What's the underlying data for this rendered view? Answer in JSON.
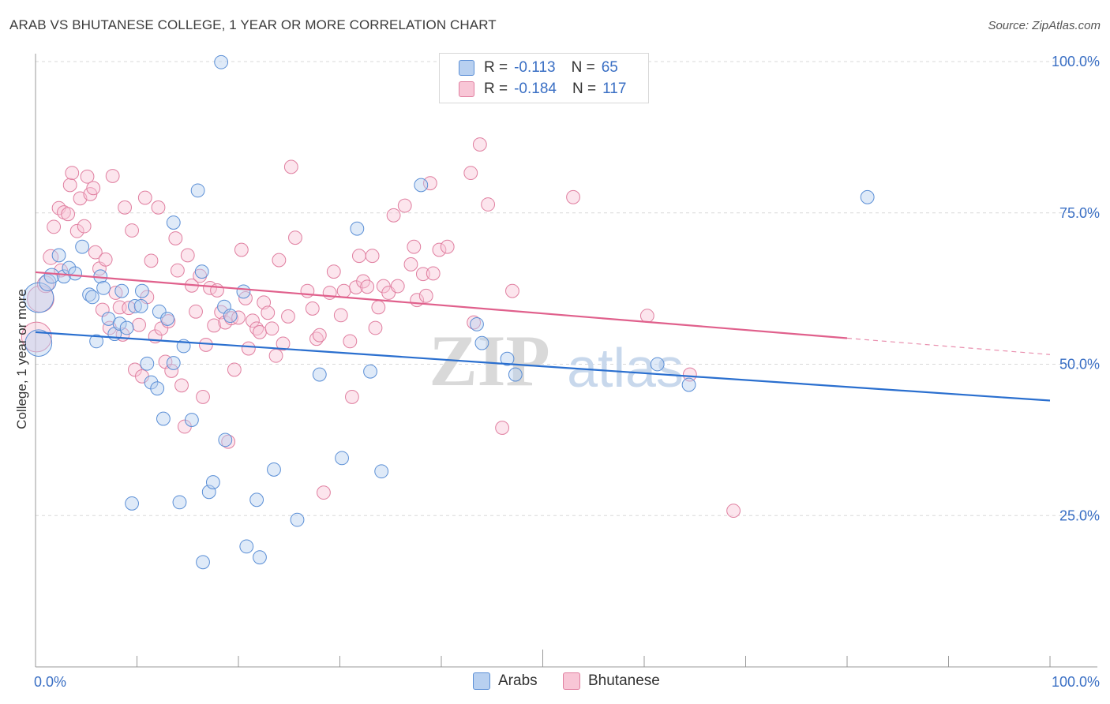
{
  "title": "ARAB VS BHUTANESE COLLEGE, 1 YEAR OR MORE CORRELATION CHART",
  "source": "Source: ZipAtlas.com",
  "watermark": {
    "zip": "ZIP",
    "atlas": "atlas"
  },
  "legend": {
    "r_label": "R =",
    "n_label": "N =",
    "series": [
      {
        "name": "Arabs",
        "r": "-0.113",
        "n": "65",
        "color": "#5b8fd6",
        "fill": "#b8d0f0"
      },
      {
        "name": "Bhutanese",
        "r": "-0.184",
        "n": "117",
        "color": "#e07fa0",
        "fill": "#f8c6d6"
      }
    ]
  },
  "chart_data": {
    "type": "scatter",
    "xlabel": "",
    "ylabel": "College, 1 year or more",
    "xlim": [
      0,
      100
    ],
    "ylim": [
      0,
      100
    ],
    "x_tick_labels": [
      "0.0%",
      "100.0%"
    ],
    "y_ticks": [
      25,
      50,
      75,
      100
    ],
    "y_tick_labels": [
      "25.0%",
      "50.0%",
      "75.0%",
      "100.0%"
    ],
    "grid": true,
    "series": [
      {
        "name": "Arabs",
        "color": "#5b8fd6",
        "trend": {
          "x": [
            0,
            100
          ],
          "y": [
            55.3,
            44.0
          ]
        },
        "points": [
          [
            0.3,
            61,
            18
          ],
          [
            0.3,
            53.5,
            16
          ],
          [
            1.2,
            63.5,
            10
          ],
          [
            1.6,
            64.6,
            9
          ],
          [
            2.3,
            68,
            8
          ],
          [
            2.8,
            64.5,
            8
          ],
          [
            3.3,
            65.9,
            8
          ],
          [
            3.9,
            65,
            8
          ],
          [
            4.6,
            69.4,
            8
          ],
          [
            5.3,
            61.5,
            8
          ],
          [
            5.6,
            61.1,
            8
          ],
          [
            6.0,
            53.8,
            8
          ],
          [
            6.4,
            64.5,
            8
          ],
          [
            6.7,
            62.6,
            8
          ],
          [
            7.2,
            57.5,
            8
          ],
          [
            7.8,
            55,
            8
          ],
          [
            8.3,
            56.7,
            8
          ],
          [
            8.5,
            62.1,
            8
          ],
          [
            9.0,
            56,
            8
          ],
          [
            9.5,
            27,
            8
          ],
          [
            9.8,
            59.6,
            8
          ],
          [
            10.4,
            59.6,
            8
          ],
          [
            10.5,
            62.1,
            8
          ],
          [
            11.0,
            50.1,
            8
          ],
          [
            11.4,
            47,
            8
          ],
          [
            12.0,
            46,
            8
          ],
          [
            12.2,
            58.7,
            8
          ],
          [
            12.6,
            41,
            8
          ],
          [
            13.0,
            57.5,
            8
          ],
          [
            13.6,
            50.2,
            8
          ],
          [
            13.6,
            73.4,
            8
          ],
          [
            14.2,
            27.2,
            8
          ],
          [
            14.6,
            53,
            8
          ],
          [
            15.4,
            40.8,
            8
          ],
          [
            16.0,
            78.7,
            8
          ],
          [
            16.4,
            65.3,
            8
          ],
          [
            16.5,
            17.3,
            8
          ],
          [
            17.1,
            28.9,
            8
          ],
          [
            17.5,
            30.5,
            8
          ],
          [
            18.3,
            99.9,
            8
          ],
          [
            18.6,
            59.5,
            8
          ],
          [
            18.7,
            37.5,
            8
          ],
          [
            19.2,
            58,
            8
          ],
          [
            20.5,
            62,
            8
          ],
          [
            20.8,
            19.9,
            8
          ],
          [
            21.8,
            27.6,
            8
          ],
          [
            22.1,
            18.1,
            8
          ],
          [
            23.5,
            32.6,
            8
          ],
          [
            25.8,
            24.3,
            8
          ],
          [
            28.0,
            48.3,
            8
          ],
          [
            30.2,
            34.5,
            8
          ],
          [
            31.7,
            72.4,
            8
          ],
          [
            33.0,
            48.8,
            8
          ],
          [
            34.1,
            32.3,
            8
          ],
          [
            38.0,
            79.6,
            8
          ],
          [
            43.5,
            56.6,
            8
          ],
          [
            44.0,
            53.5,
            8
          ],
          [
            46.5,
            50.9,
            8
          ],
          [
            47.3,
            48.3,
            8
          ],
          [
            61.3,
            50,
            8
          ],
          [
            64.4,
            46.6,
            8
          ],
          [
            82.0,
            77.6,
            8
          ]
        ]
      },
      {
        "name": "Bhutanese",
        "color": "#e07fa0",
        "trend": {
          "x": [
            0,
            80
          ],
          "y": [
            65.2,
            54.3
          ]
        },
        "trend_ext": {
          "x": [
            80,
            100
          ],
          "y": [
            54.3,
            51.6
          ]
        },
        "points": [
          [
            0.1,
            54.5,
            18
          ],
          [
            0.5,
            60.8,
            16
          ],
          [
            1.0,
            63.2,
            10
          ],
          [
            1.5,
            67.7,
            9
          ],
          [
            1.8,
            72.7,
            8
          ],
          [
            2.3,
            75.8,
            8
          ],
          [
            2.5,
            65.5,
            8
          ],
          [
            2.8,
            75.1,
            8
          ],
          [
            3.2,
            74.8,
            8
          ],
          [
            3.4,
            79.6,
            8
          ],
          [
            3.6,
            81.6,
            8
          ],
          [
            4.1,
            72,
            8
          ],
          [
            4.4,
            77.4,
            8
          ],
          [
            4.8,
            72.8,
            8
          ],
          [
            5.1,
            81,
            8
          ],
          [
            5.4,
            78.1,
            8
          ],
          [
            5.7,
            79.1,
            8
          ],
          [
            5.9,
            68.5,
            8
          ],
          [
            6.3,
            65.8,
            8
          ],
          [
            6.6,
            59,
            8
          ],
          [
            6.9,
            67.3,
            8
          ],
          [
            7.3,
            56,
            8
          ],
          [
            7.6,
            81.1,
            8
          ],
          [
            7.9,
            61.8,
            8
          ],
          [
            8.3,
            59.4,
            8
          ],
          [
            8.6,
            54.9,
            8
          ],
          [
            8.8,
            75.9,
            8
          ],
          [
            9.2,
            59.3,
            8
          ],
          [
            9.5,
            72.1,
            8
          ],
          [
            9.8,
            49.1,
            8
          ],
          [
            10.2,
            56.5,
            8
          ],
          [
            10.5,
            48,
            8
          ],
          [
            10.8,
            77.5,
            8
          ],
          [
            11.0,
            61.1,
            8
          ],
          [
            11.4,
            67.1,
            8
          ],
          [
            11.8,
            54.6,
            8
          ],
          [
            12.1,
            75.9,
            8
          ],
          [
            12.4,
            55.9,
            8
          ],
          [
            12.8,
            50.4,
            8
          ],
          [
            13.1,
            57.1,
            8
          ],
          [
            13.4,
            48.9,
            8
          ],
          [
            13.8,
            70.8,
            8
          ],
          [
            14.0,
            65.5,
            8
          ],
          [
            14.4,
            46.5,
            8
          ],
          [
            14.7,
            39.7,
            8
          ],
          [
            15.0,
            68,
            8
          ],
          [
            15.4,
            63,
            8
          ],
          [
            15.8,
            58.7,
            8
          ],
          [
            16.2,
            64.6,
            8
          ],
          [
            16.5,
            44.6,
            8
          ],
          [
            16.8,
            53.2,
            8
          ],
          [
            17.2,
            62.6,
            8
          ],
          [
            17.6,
            56.4,
            8
          ],
          [
            17.9,
            62.2,
            8
          ],
          [
            18.3,
            58.6,
            8
          ],
          [
            18.7,
            56.9,
            8
          ],
          [
            19.0,
            37.2,
            8
          ],
          [
            19.3,
            57.6,
            8
          ],
          [
            19.6,
            49.1,
            8
          ],
          [
            20.0,
            57.7,
            8
          ],
          [
            20.3,
            68.9,
            8
          ],
          [
            20.7,
            60.9,
            8
          ],
          [
            21.0,
            52.6,
            8
          ],
          [
            21.4,
            57.2,
            8
          ],
          [
            21.8,
            55.9,
            8
          ],
          [
            22.1,
            55.3,
            8
          ],
          [
            22.5,
            60.2,
            8
          ],
          [
            22.9,
            58.5,
            8
          ],
          [
            23.3,
            55.9,
            8
          ],
          [
            23.7,
            51.4,
            8
          ],
          [
            24.0,
            67.2,
            8
          ],
          [
            24.4,
            53.4,
            8
          ],
          [
            24.9,
            57.9,
            8
          ],
          [
            25.2,
            82.6,
            8
          ],
          [
            25.6,
            70.9,
            8
          ],
          [
            26.8,
            62.1,
            8
          ],
          [
            27.3,
            59.2,
            8
          ],
          [
            27.7,
            54.2,
            8
          ],
          [
            28.0,
            54.8,
            8
          ],
          [
            28.4,
            28.8,
            8
          ],
          [
            29.0,
            61.8,
            8
          ],
          [
            29.4,
            65.3,
            8
          ],
          [
            30.1,
            58.1,
            8
          ],
          [
            30.4,
            62.1,
            8
          ],
          [
            31.0,
            53.8,
            8
          ],
          [
            31.2,
            44.6,
            8
          ],
          [
            31.6,
            62.7,
            8
          ],
          [
            31.9,
            67.9,
            8
          ],
          [
            32.3,
            63.7,
            8
          ],
          [
            32.7,
            62.8,
            8
          ],
          [
            33.2,
            67.9,
            8
          ],
          [
            33.5,
            56,
            8
          ],
          [
            33.8,
            59.4,
            8
          ],
          [
            34.3,
            62.9,
            8
          ],
          [
            34.8,
            61.8,
            8
          ],
          [
            35.3,
            74.6,
            8
          ],
          [
            35.7,
            62.9,
            8
          ],
          [
            36.4,
            76.2,
            8
          ],
          [
            37.0,
            66.5,
            8
          ],
          [
            37.3,
            69.4,
            8
          ],
          [
            37.6,
            60.6,
            8
          ],
          [
            38.2,
            64.9,
            8
          ],
          [
            38.5,
            61.3,
            8
          ],
          [
            38.9,
            79.9,
            8
          ],
          [
            39.2,
            65,
            8
          ],
          [
            39.8,
            68.9,
            8
          ],
          [
            40.6,
            69.4,
            8
          ],
          [
            42.9,
            81.6,
            8
          ],
          [
            43.2,
            56.9,
            8
          ],
          [
            43.8,
            86.3,
            8
          ],
          [
            44.6,
            76.4,
            8
          ],
          [
            46.0,
            39.5,
            8
          ],
          [
            47.0,
            62.1,
            8
          ],
          [
            53.0,
            77.6,
            8
          ],
          [
            60.3,
            58,
            8
          ],
          [
            64.5,
            48.3,
            8
          ],
          [
            68.8,
            25.8,
            8
          ]
        ]
      }
    ]
  }
}
